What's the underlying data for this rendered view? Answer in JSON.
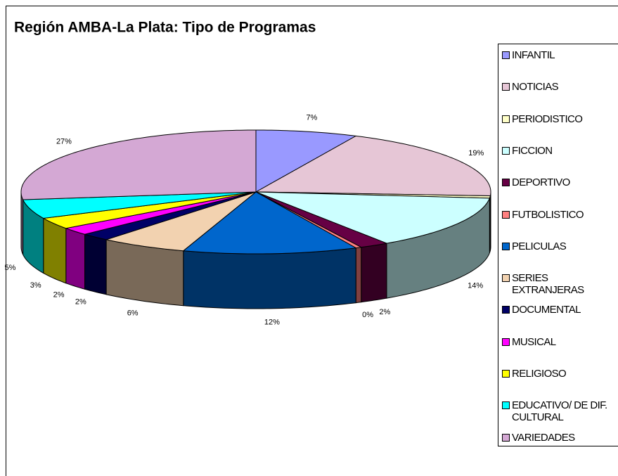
{
  "chart_data": {
    "type": "pie3d",
    "title": "Región AMBA-La Plata: Tipo de Programas",
    "categories": [
      "INFANTIL",
      "NOTICIAS",
      "PERIODISTICO",
      "FICCION",
      "DEPORTIVO",
      "FUTBOLISTICO",
      "PELICULAS",
      "SERIES EXTRANJERAS",
      "DOCUMENTAL",
      "MUSICAL",
      "RELIGIOSO",
      "EDUCATIVO/ DE DIF. CULTURAL",
      "VARIEDADES"
    ],
    "values": [
      7,
      19,
      0.6,
      14,
      2,
      0.4,
      12,
      6,
      2,
      2,
      3,
      5,
      27
    ],
    "value_labels": [
      "7%",
      "19%",
      null,
      "14%",
      "2%",
      "0%",
      "12%",
      "6%",
      "2%",
      "2%",
      "3%",
      "5%",
      "27%"
    ],
    "colors": [
      "#9999ff",
      "#e6c6d6",
      "#ffffc8",
      "#ccffff",
      "#660044",
      "#ff8080",
      "#0066cc",
      "#f2d2b0",
      "#000066",
      "#ff00ff",
      "#ffff00",
      "#00ffff",
      "#d4a8d4"
    ],
    "legend": "right"
  }
}
